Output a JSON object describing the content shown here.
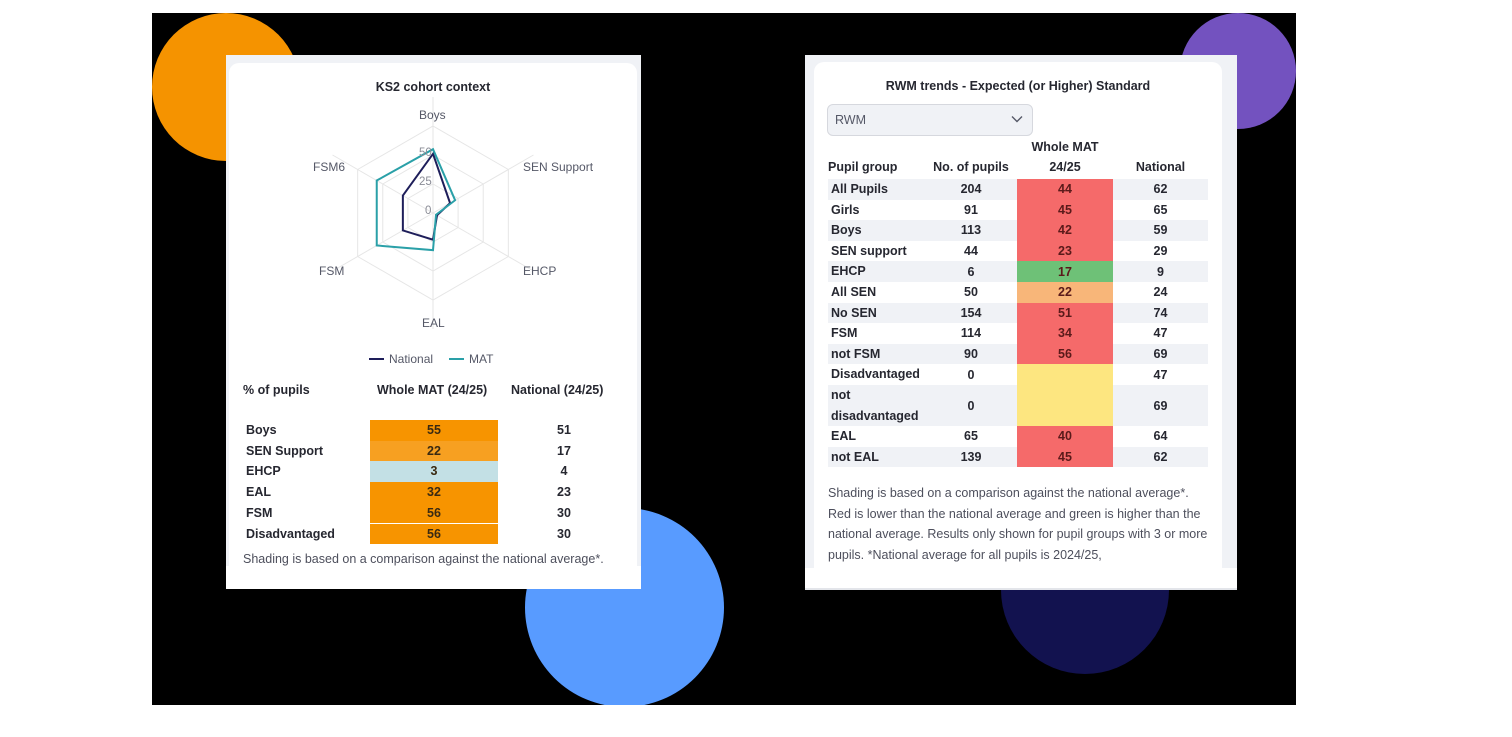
{
  "colors": {
    "backdrop": "#000000",
    "circle_orange": "#f59300",
    "circle_purple": "#7352bf",
    "circle_blue": "#589bff",
    "circle_navy": "#12124f",
    "national_line": "#1e1e5a",
    "mat_line": "#2aa0a8",
    "shade_orange_strong": "#f79400",
    "shade_orange_mid": "#f7a021",
    "shade_lightblue": "#c3e0e5",
    "shade_red": "#f56a6a",
    "shade_green": "#6ec177",
    "shade_peach": "#f8b679",
    "shade_yellow": "#fde680"
  },
  "left_card": {
    "title": "KS2 cohort context",
    "table": {
      "headers": [
        "% of pupils",
        "Whole MAT (24/25)",
        "National (24/25)"
      ],
      "rows": [
        {
          "label": "Boys",
          "mat": "55",
          "national": "51",
          "shade": "#f79400"
        },
        {
          "label": "SEN Support",
          "mat": "22",
          "national": "17",
          "shade": "#f7a021"
        },
        {
          "label": "EHCP",
          "mat": "3",
          "national": "4",
          "shade": "#c3e0e5"
        },
        {
          "label": "EAL",
          "mat": "32",
          "national": "23",
          "shade": "#f79400"
        },
        {
          "label": "FSM",
          "mat": "56",
          "national": "30",
          "shade": "#f79400"
        },
        {
          "label": "Disadvantaged",
          "mat": "56",
          "national": "30",
          "shade": "#f79400"
        }
      ]
    },
    "note": "Shading is based on a comparison against the national average*."
  },
  "right_card": {
    "title": "RWM trends - Expected (or Higher) Standard",
    "dropdown": {
      "selected": "RWM",
      "icon": "chevron-down-icon"
    },
    "table": {
      "headers": {
        "group": "Pupil group",
        "pupils": "No. of pupils",
        "mat_line1": "Whole MAT",
        "mat_line2": "24/25",
        "national": "National"
      },
      "rows": [
        {
          "group": "All Pupils",
          "pupils": "204",
          "mat": "44",
          "national": "62",
          "shade": "#f56a6a"
        },
        {
          "group": "Girls",
          "pupils": "91",
          "mat": "45",
          "national": "65",
          "shade": "#f56a6a"
        },
        {
          "group": "Boys",
          "pupils": "113",
          "mat": "42",
          "national": "59",
          "shade": "#f56a6a"
        },
        {
          "group": "SEN support",
          "pupils": "44",
          "mat": "23",
          "national": "29",
          "shade": "#f56a6a"
        },
        {
          "group": "EHCP",
          "pupils": "6",
          "mat": "17",
          "national": "9",
          "shade": "#6ec177"
        },
        {
          "group": "All SEN",
          "pupils": "50",
          "mat": "22",
          "national": "24",
          "shade": "#f8b679"
        },
        {
          "group": "No SEN",
          "pupils": "154",
          "mat": "51",
          "national": "74",
          "shade": "#f56a6a"
        },
        {
          "group": "FSM",
          "pupils": "114",
          "mat": "34",
          "national": "47",
          "shade": "#f56a6a"
        },
        {
          "group": "not FSM",
          "pupils": "90",
          "mat": "56",
          "national": "69",
          "shade": "#f56a6a"
        },
        {
          "group": "Disadvantaged",
          "pupils": "0",
          "mat": "",
          "national": "47",
          "shade": "#fde680"
        },
        {
          "group": "not disadvantaged",
          "pupils": "0",
          "mat": "",
          "national": "69",
          "shade": "#fde680"
        },
        {
          "group": "EAL",
          "pupils": "65",
          "mat": "40",
          "national": "64",
          "shade": "#f56a6a"
        },
        {
          "group": "not EAL",
          "pupils": "139",
          "mat": "45",
          "national": "62",
          "shade": "#f56a6a"
        }
      ]
    },
    "note": "Shading is based on a comparison against the national average*. Red is lower than the national average and green is higher than the national average. Results only shown for pupil groups with 3 or more pupils. *National average for all pupils is 2024/25,"
  },
  "chart_data": {
    "type": "radar",
    "title": "KS2 cohort context",
    "categories": [
      "Boys",
      "SEN Support",
      "EHCP",
      "EAL",
      "FSM",
      "FSM6"
    ],
    "radial_ticks": [
      "0",
      "25",
      "50"
    ],
    "range": [
      0,
      75
    ],
    "series": [
      {
        "name": "National",
        "values": [
          51,
          17,
          4,
          23,
          30,
          30
        ]
      },
      {
        "name": "MAT",
        "values": [
          55,
          22,
          3,
          32,
          56,
          56
        ]
      }
    ],
    "legend": [
      "National",
      "MAT"
    ],
    "legend_position": "bottom"
  }
}
